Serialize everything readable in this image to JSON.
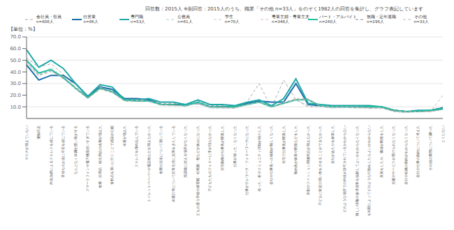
{
  "chart_data": {
    "type": "line",
    "title": "回答数：2015人 ※副回答：2015人のうち、職業「その他 n=33人」をのぞく1982人の回答を集計し、グラフ表記しています",
    "ylabel": "【単位：%】",
    "categories": [
      "マスクが買えていない",
      "運動不足",
      "外出自粛によるストレスを感じている",
      "手持ちのお金に不安を感じている",
      "なんとなく体調が悪い気がする",
      "スマートフォンや電子機器使いすぎている",
      "食費・日用品・衛生用品の出費が増えた",
      "食料品を買いに行くことで感染が心配",
      "体重が増えた",
      "ストレスを溜め込んでいる",
      "トイレットペーパーや電話粉などが買えなかった",
      "食費の支出について困っている",
      "体重計等について日常生活に支障をきたしている",
      "放課後に使える場所がなくなった",
      "子どもの通う学校や保育園・幼稚園・塾などが休みになった",
      "子どもたちのフォローに手が回らなかった",
      "在宅勤務や仕事先が閉業した",
      "仕事が減った・なくなった",
      "仕事がテレワーク・フォローワークになった",
      "拾った・村やコミュニティ活動が縮小した",
      "会社や仕事先への移動が難しくなった",
      "在宅で仕事先が閉業した",
      "勤め先が休業や閉業などをした",
      "衣類やファッション関連商品が買えなかった",
      "子どもに特定の買い物をさせることができなかった",
      "会社があたりを休業した",
      "どのような場所での外出が許可されているかわからない",
      "難しい情報や参考資料を信頼してよいかわからなくなった",
      "などを制限によってどのような行動をしたらよいかわからない",
      "失業をしたり、職場が閉業をした",
      "支援やサービスが受けられなくなった",
      "会社や組織の動向がわからなくなった",
      "会社や仕事の動向について考えた",
      "その他の費用について調べた",
      "とくにない"
    ],
    "series": [
      {
        "name": "会社員・役員\nn=808人",
        "color": "#aaaaaa",
        "line_style": "dashed",
        "values": [
          52,
          44,
          47,
          38,
          27,
          19,
          28,
          24,
          17,
          16,
          17,
          13,
          13,
          12,
          15,
          11,
          11,
          10,
          14,
          30,
          9,
          33,
          16,
          10,
          10,
          10,
          10,
          9,
          9,
          10,
          6,
          5,
          6,
          7,
          10
        ]
      },
      {
        "name": "自営業\nn=86人",
        "color": "#1a6ea8",
        "line_style": "solid",
        "values": [
          46,
          33,
          37,
          37,
          30,
          19,
          27,
          25,
          17,
          17,
          16,
          12,
          12,
          12,
          13,
          10,
          10,
          10,
          13,
          15,
          14,
          14,
          30,
          12,
          11,
          10,
          10,
          10,
          10,
          10,
          7,
          6,
          6,
          7,
          9
        ]
      },
      {
        "name": "専門職\nn=53人",
        "color": "#20a8a8",
        "line_style": "solid",
        "values": [
          59,
          44,
          50,
          43,
          30,
          19,
          29,
          27,
          16,
          16,
          17,
          14,
          14,
          12,
          16,
          12,
          12,
          11,
          14,
          16,
          11,
          17,
          34,
          13,
          12,
          11,
          11,
          11,
          11,
          10,
          7,
          6,
          7,
          7,
          9
        ]
      },
      {
        "name": "公務員\nn=61人",
        "color": "#b0ccd8",
        "line_style": "dashed",
        "values": [
          47,
          36,
          44,
          35,
          25,
          17,
          26,
          23,
          15,
          15,
          15,
          12,
          11,
          11,
          13,
          9,
          9,
          9,
          12,
          14,
          10,
          13,
          16,
          11,
          10,
          9,
          10,
          10,
          9,
          9,
          6,
          5,
          6,
          6,
          8
        ]
      },
      {
        "name": "学生\nn=70人",
        "color": "#cccccc",
        "line_style": "dashed",
        "values": [
          48,
          37,
          40,
          36,
          26,
          17,
          27,
          23,
          15,
          15,
          15,
          11,
          11,
          11,
          13,
          9,
          9,
          9,
          12,
          14,
          10,
          13,
          16,
          11,
          10,
          9,
          10,
          10,
          9,
          9,
          6,
          5,
          6,
          6,
          8
        ]
      },
      {
        "name": "専業主婦・専業主夫\nn=348人",
        "color": "#d8b8b8",
        "line_style": "dashed",
        "values": [
          50,
          38,
          42,
          36,
          26,
          18,
          26,
          23,
          16,
          16,
          15,
          12,
          11,
          11,
          14,
          10,
          10,
          9,
          12,
          14,
          10,
          14,
          17,
          17,
          11,
          10,
          10,
          10,
          9,
          10,
          7,
          6,
          6,
          6,
          8
        ]
      },
      {
        "name": "パート・アルバイト\nn=260人",
        "color": "#20c0a0",
        "line_style": "solid",
        "values": [
          50,
          39,
          42,
          35,
          26,
          18,
          26,
          23,
          16,
          15,
          15,
          12,
          12,
          11,
          14,
          10,
          10,
          10,
          12,
          14,
          10,
          13,
          16,
          16,
          11,
          10,
          10,
          10,
          10,
          10,
          7,
          6,
          6,
          7,
          8
        ]
      },
      {
        "name": "無職・定年退職\nn=295人",
        "color": "#888888",
        "line_style": "dashed",
        "values": [
          49,
          37,
          41,
          35,
          26,
          18,
          26,
          23,
          15,
          15,
          15,
          12,
          12,
          11,
          13,
          10,
          10,
          9,
          12,
          14,
          10,
          13,
          16,
          16,
          11,
          10,
          10,
          10,
          9,
          9,
          7,
          6,
          6,
          6,
          8
        ]
      },
      {
        "name": "その他\nn=33人",
        "color": "#bbbbbb",
        "line_style": "dashed",
        "values": [
          49,
          37,
          41,
          34,
          26,
          17,
          25,
          22,
          15,
          15,
          15,
          12,
          11,
          11,
          13,
          10,
          9,
          9,
          12,
          14,
          10,
          13,
          16,
          16,
          11,
          10,
          10,
          10,
          9,
          9,
          6,
          6,
          6,
          6,
          20
        ]
      }
    ],
    "ylim": [
      0,
      70
    ],
    "yticks": [
      {
        "value": 10,
        "label": "10.0"
      },
      {
        "value": 20,
        "label": "20.0"
      },
      {
        "value": 30,
        "label": "30.0"
      },
      {
        "value": 40,
        "label": "40.0"
      },
      {
        "value": 50,
        "label": "50.0"
      },
      {
        "value": 60,
        "label": "60.0"
      },
      {
        "value": 70,
        "label": "70.0"
      }
    ],
    "grid": true,
    "legend": "top",
    "highlights": [
      {
        "category": "拾った・村やコミュニティ活動が縮小した",
        "color": "#e0306e"
      },
      {
        "category": "在宅で仕事先が閉業した",
        "color": "#e0306e"
      },
      {
        "category": "難しい情報や参考資料を信頼してよいかわからなくなった",
        "color": "#e0306e"
      }
    ]
  }
}
